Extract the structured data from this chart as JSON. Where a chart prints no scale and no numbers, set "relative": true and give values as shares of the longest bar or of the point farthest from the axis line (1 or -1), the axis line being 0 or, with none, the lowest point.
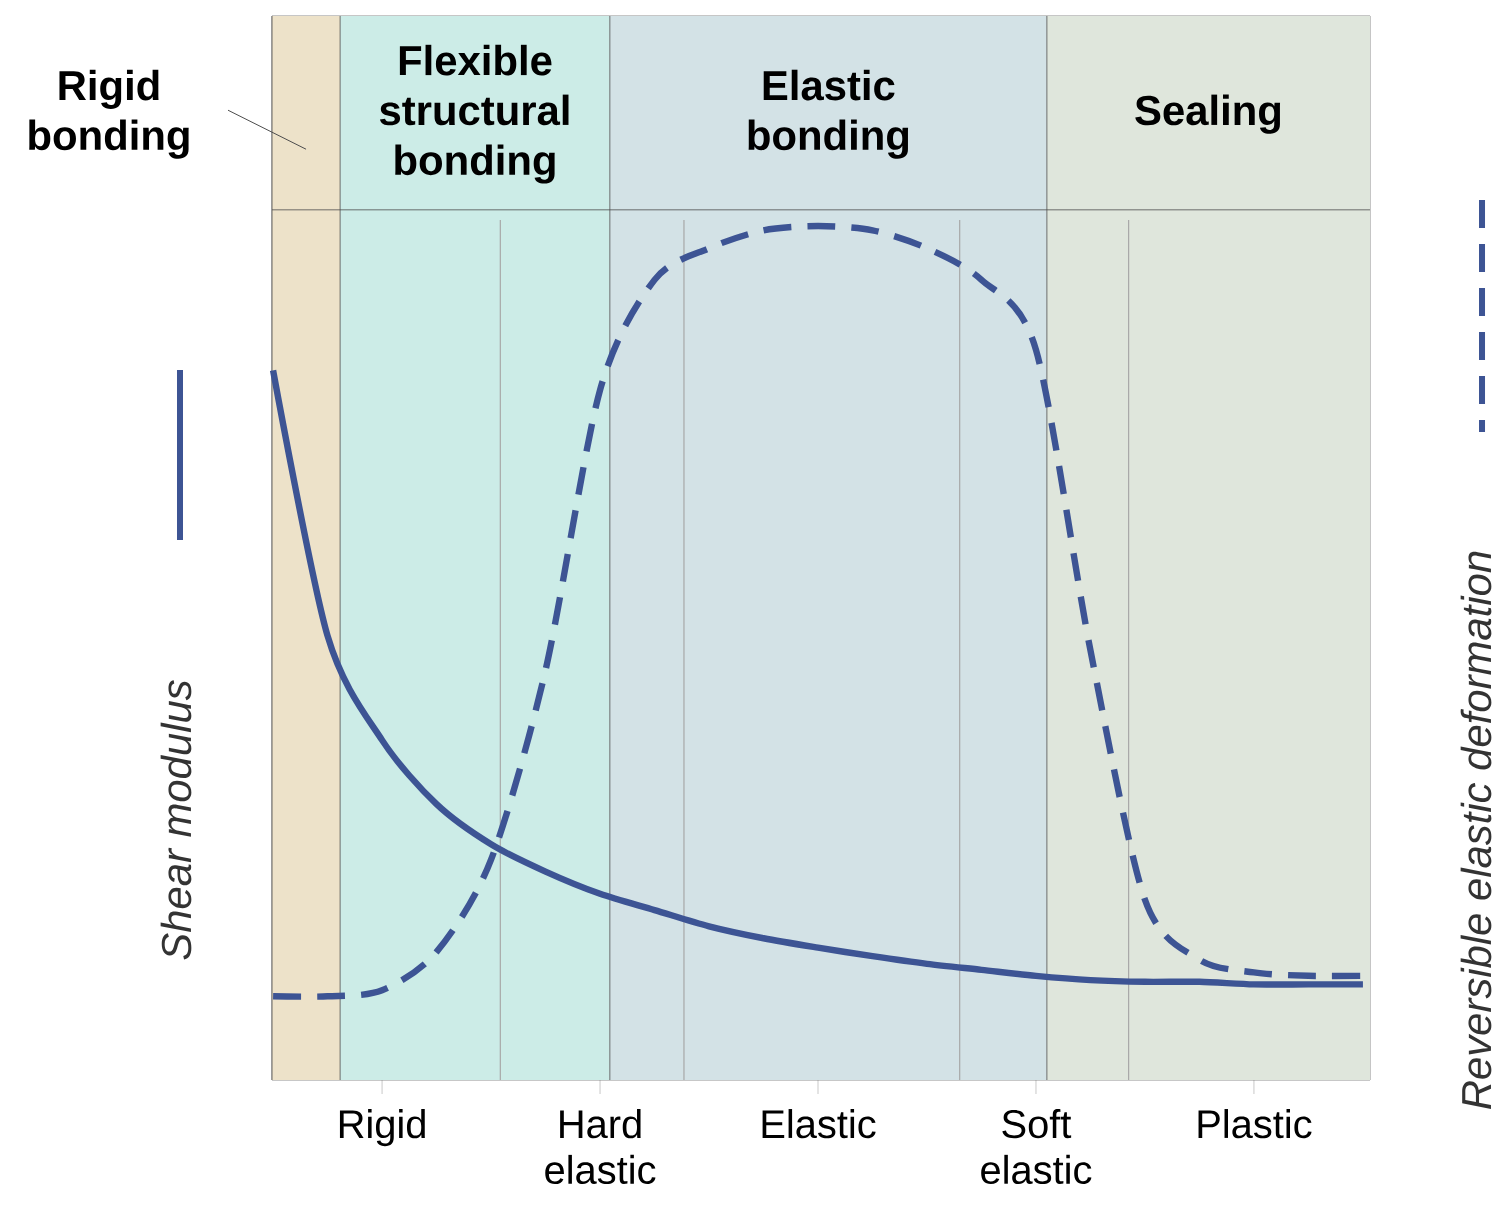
{
  "chart_data": {
    "type": "line",
    "relative": true,
    "ylabel": "Shear modulus",
    "y2label": "Reversible elastic deformation",
    "annotations": [
      "Rigid bonding",
      "Flexible structural bonding",
      "Elastic bonding",
      "Sealing"
    ],
    "categories": [
      null,
      null,
      "Rigid",
      null,
      null,
      null,
      "Hard elastic",
      null,
      null,
      null,
      "Elastic",
      null,
      null,
      null,
      "Soft elastic",
      null,
      null,
      null,
      "Plastic",
      null,
      null
    ],
    "series": [
      {
        "color": "#3d5494",
        "line_style": "solid",
        "values": [
          0.831,
          0.52,
          0.398,
          0.323,
          0.276,
          0.244,
          0.218,
          0.199,
          0.18,
          0.166,
          0.155,
          0.145,
          0.136,
          0.129,
          0.122,
          0.117,
          0.115,
          0.115,
          0.112,
          0.112,
          0.112
        ]
      },
      {
        "color": "#3d5494",
        "line_style": "dashed",
        "values": [
          0.098,
          0.098,
          0.105,
          0.15,
          0.258,
          0.48,
          0.808,
          0.937,
          0.974,
          0.995,
          1,
          0.995,
          0.974,
          0.937,
          0.855,
          0.503,
          0.211,
          0.141,
          0.126,
          0.122,
          0.122
        ]
      }
    ]
  }
}
